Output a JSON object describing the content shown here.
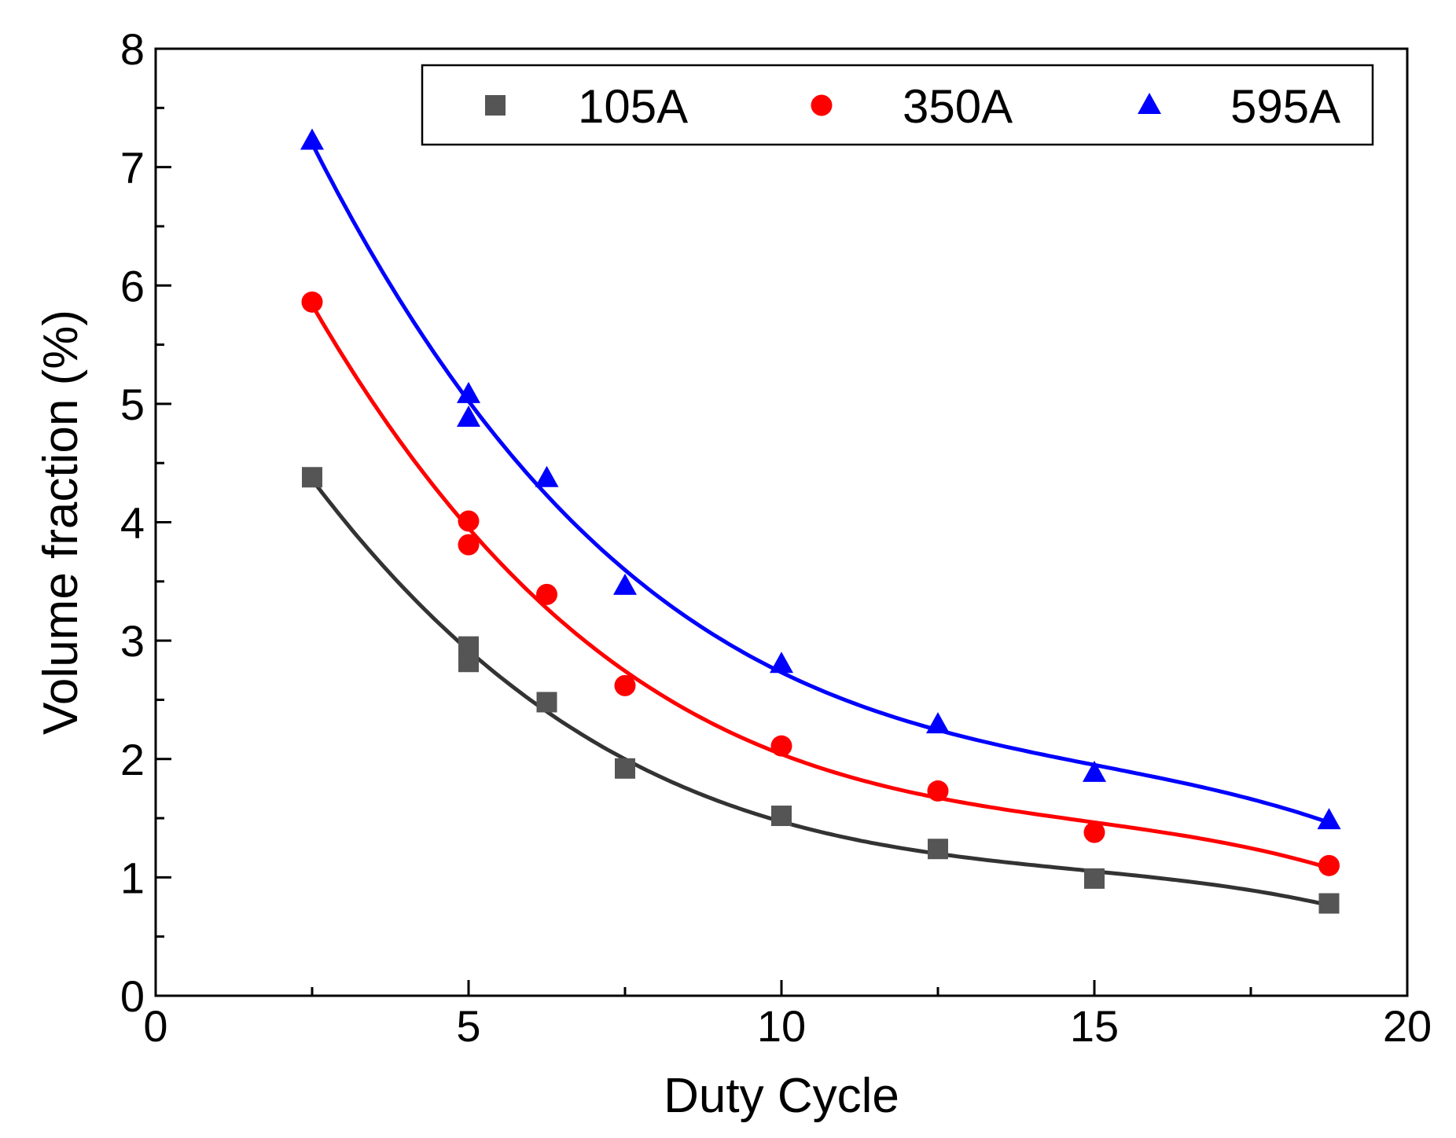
{
  "chart_data": {
    "type": "scatter",
    "title": "",
    "xlabel": "Duty Cycle",
    "ylabel": "Volume fraction (%)",
    "xlim": [
      0,
      20
    ],
    "ylim": [
      0,
      8
    ],
    "xticks": [
      "0",
      "5",
      "10",
      "15",
      "20"
    ],
    "yticks": [
      "0",
      "1",
      "2",
      "3",
      "4",
      "5",
      "6",
      "7",
      "8"
    ],
    "grid": false,
    "legend": "top-right",
    "fit_lines": true,
    "series": [
      {
        "name": "105A",
        "marker": "square",
        "color": "#555555",
        "line_color": "#333333",
        "x": [
          2.5,
          5,
          5,
          6.25,
          7.5,
          10,
          12.5,
          15,
          18.75
        ],
        "y": [
          4.38,
          2.95,
          2.82,
          2.48,
          1.92,
          1.52,
          1.24,
          0.99,
          0.78
        ]
      },
      {
        "name": "350A",
        "marker": "circle",
        "color": "#ff0000",
        "line_color": "#ff0000",
        "x": [
          2.5,
          5,
          5,
          6.25,
          7.5,
          10,
          12.5,
          15,
          18.75
        ],
        "y": [
          5.86,
          4.01,
          3.81,
          3.39,
          2.62,
          2.11,
          1.73,
          1.38,
          1.1
        ]
      },
      {
        "name": "595A",
        "marker": "triangle",
        "color": "#0000ff",
        "line_color": "#0000ff",
        "x": [
          2.5,
          5,
          5,
          6.25,
          7.5,
          10,
          12.5,
          15,
          18.75
        ],
        "y": [
          7.22,
          5.08,
          4.88,
          4.37,
          3.46,
          2.8,
          2.29,
          1.88,
          1.48
        ]
      }
    ]
  }
}
